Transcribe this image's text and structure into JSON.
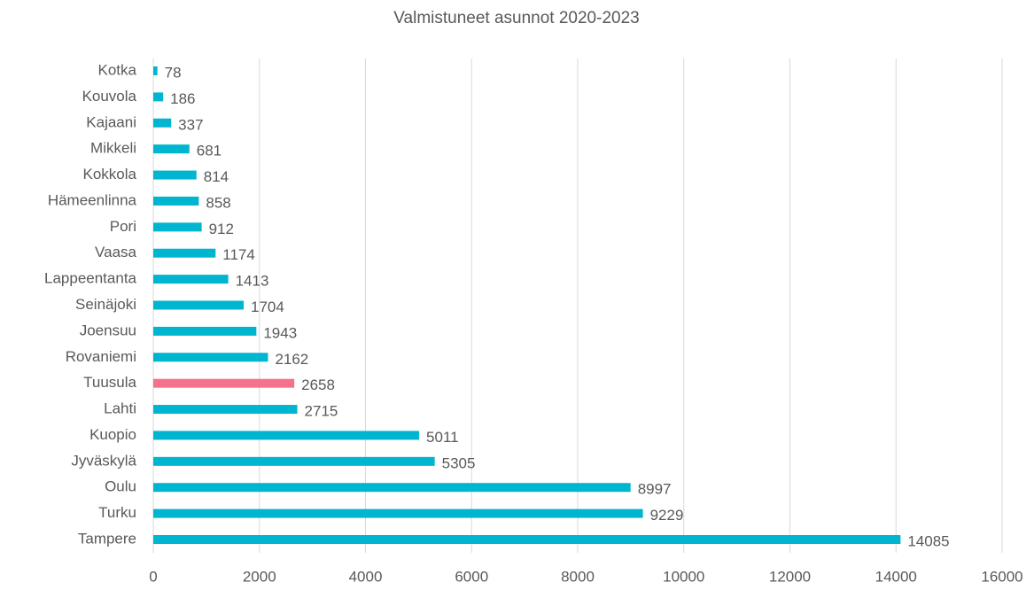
{
  "chart_data": {
    "type": "barh",
    "title": "Valmistuneet asunnot 2020-2023",
    "categories": [
      "Kotka",
      "Kouvola",
      "Kajaani",
      "Mikkeli",
      "Kokkola",
      "Hämeenlinna",
      "Pori",
      "Vaasa",
      "Lappeentanta",
      "Seinäjoki",
      "Joensuu",
      "Rovaniemi",
      "Tuusula",
      "Lahti",
      "Kuopio",
      "Jyväskylä",
      "Oulu",
      "Turku",
      "Tampere"
    ],
    "values": [
      78,
      186,
      337,
      681,
      814,
      858,
      912,
      1174,
      1413,
      1704,
      1943,
      2162,
      2658,
      2715,
      5011,
      5305,
      8997,
      9229,
      14085
    ],
    "colors": [
      "#00b5cf",
      "#00b5cf",
      "#00b5cf",
      "#00b5cf",
      "#00b5cf",
      "#00b5cf",
      "#00b5cf",
      "#00b5cf",
      "#00b5cf",
      "#00b5cf",
      "#00b5cf",
      "#00b5cf",
      "#f4728b",
      "#00b5cf",
      "#00b5cf",
      "#00b5cf",
      "#00b5cf",
      "#00b5cf",
      "#00b5cf"
    ],
    "xlim": [
      0,
      16000
    ],
    "xticks": [
      0,
      2000,
      4000,
      6000,
      8000,
      10000,
      12000,
      14000,
      16000
    ],
    "grid": true
  }
}
